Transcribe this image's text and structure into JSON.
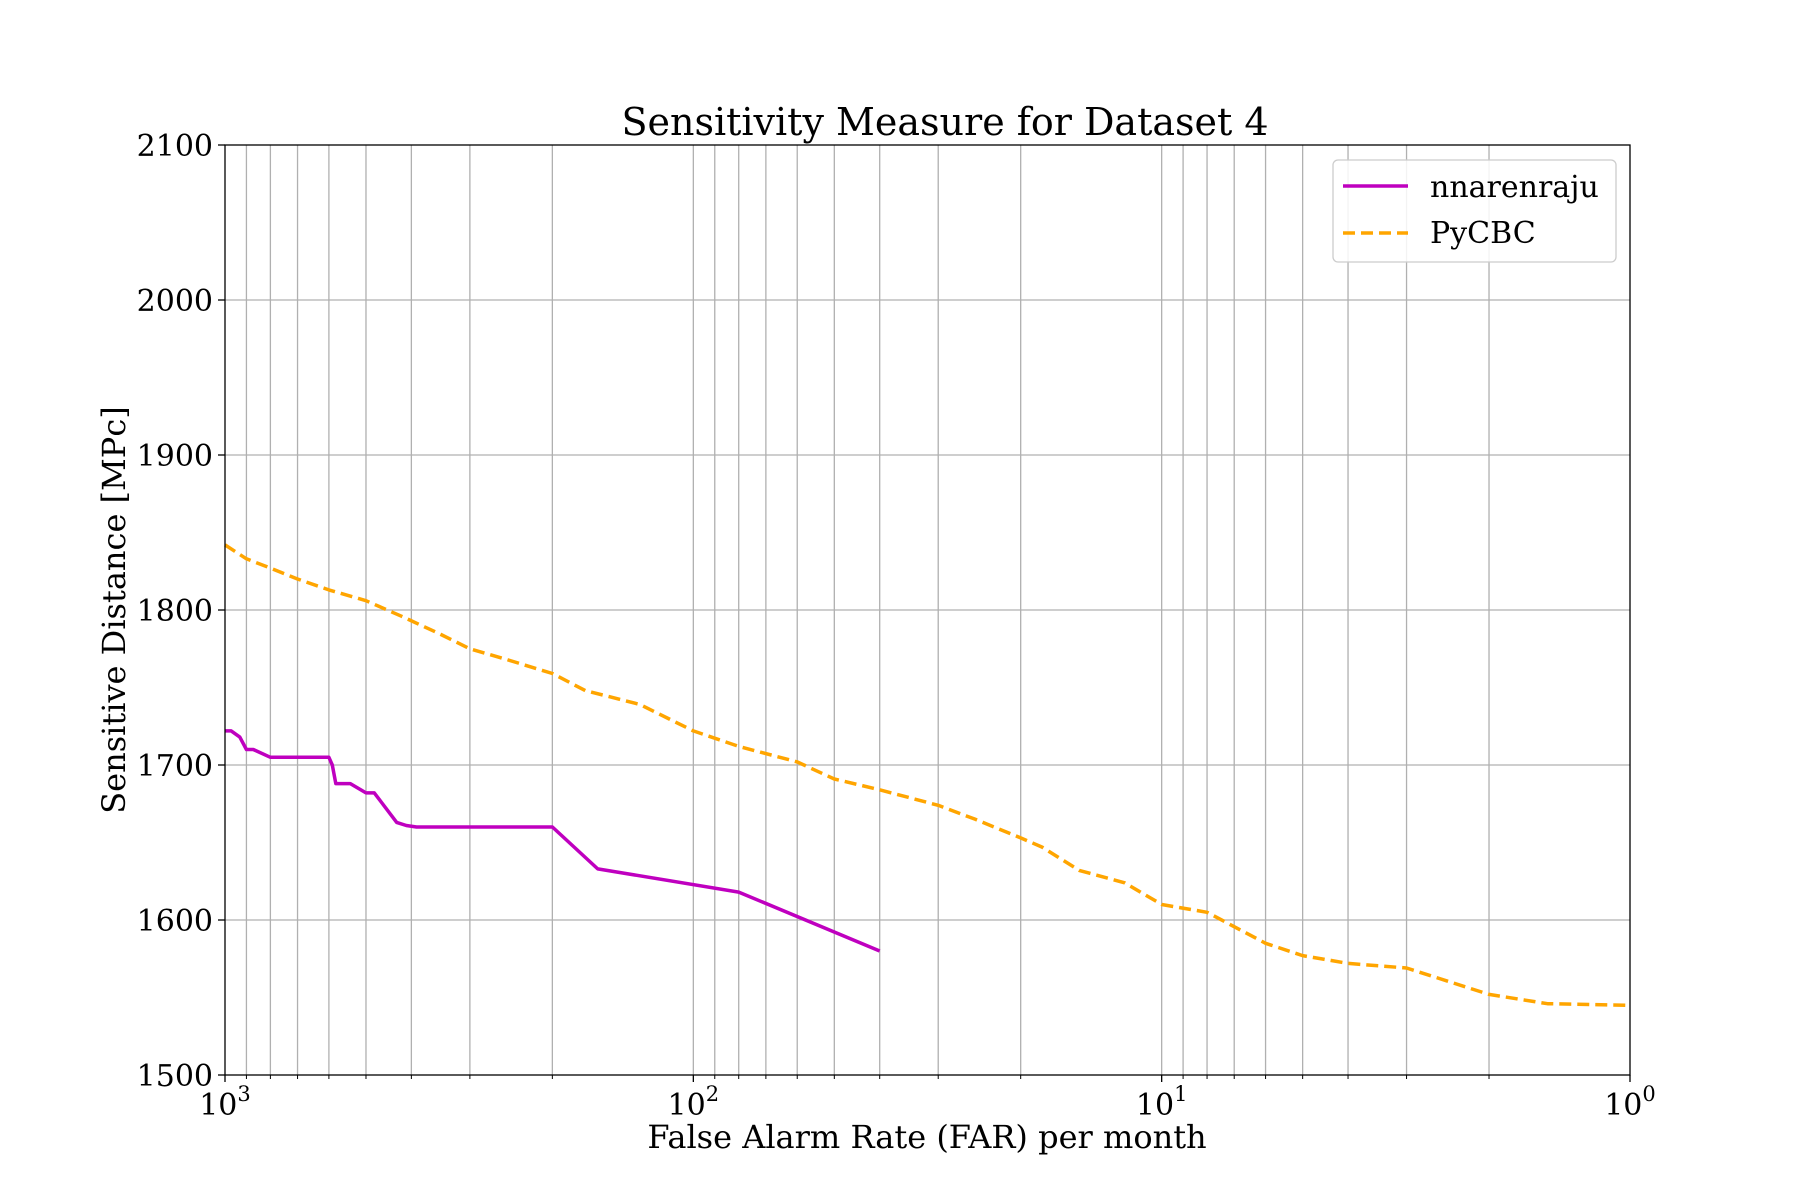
{
  "chart_data": {
    "type": "line",
    "title": "Sensitivity Measure for Dataset 4",
    "xlabel": "False Alarm Rate (FAR) per month",
    "ylabel": "Sensitive Distance [MPc]",
    "x_scale": "log",
    "x_inverted": true,
    "xlim": [
      1000,
      1
    ],
    "ylim": [
      1500,
      2100
    ],
    "grid": true,
    "legend_position": "top-right",
    "x_ticks": [
      {
        "base": "10",
        "exp": "3",
        "value": 1000
      },
      {
        "base": "10",
        "exp": "2",
        "value": 100
      },
      {
        "base": "10",
        "exp": "1",
        "value": 10
      },
      {
        "base": "10",
        "exp": "0",
        "value": 1
      }
    ],
    "y_ticks": [
      "1500",
      "1600",
      "1700",
      "1800",
      "1900",
      "2000",
      "2100"
    ],
    "series": [
      {
        "name": "nnarenraju",
        "color": "#bf00bf",
        "style": "solid",
        "x": [
          1000,
          970,
          930,
          900,
          870,
          800,
          600,
          590,
          580,
          540,
          500,
          480,
          430,
          410,
          390,
          200,
          160,
          80,
          40
        ],
        "y": [
          1722,
          1722,
          1718,
          1710,
          1710,
          1705,
          1705,
          1700,
          1688,
          1688,
          1682,
          1682,
          1663,
          1661,
          1660,
          1660,
          1633,
          1618,
          1580
        ]
      },
      {
        "name": "PyCBC",
        "color": "#ffa500",
        "style": "dashed",
        "x": [
          1000,
          900,
          800,
          700,
          600,
          500,
          420,
          350,
          300,
          250,
          200,
          170,
          130,
          100,
          80,
          60,
          50,
          40,
          30,
          25,
          20,
          18,
          15,
          12,
          10,
          8,
          6,
          5,
          4,
          3,
          2,
          1.5,
          1
        ],
        "y": [
          1842,
          1833,
          1827,
          1820,
          1813,
          1806,
          1796,
          1785,
          1775,
          1768,
          1759,
          1748,
          1739,
          1722,
          1712,
          1702,
          1691,
          1684,
          1674,
          1665,
          1653,
          1647,
          1632,
          1624,
          1610,
          1605,
          1585,
          1577,
          1572,
          1569,
          1552,
          1546,
          1545
        ]
      }
    ]
  }
}
